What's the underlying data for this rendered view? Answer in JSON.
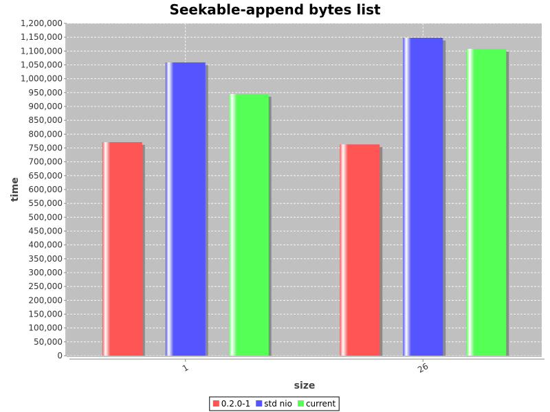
{
  "chart_data": {
    "type": "bar",
    "title": "Seekable-append bytes list",
    "xlabel": "size",
    "ylabel": "time",
    "categories": [
      "1",
      "26"
    ],
    "series": [
      {
        "name": "0.2.0-1",
        "values": [
          771000,
          763000
        ]
      },
      {
        "name": "std nio",
        "values": [
          1059000,
          1148000
        ]
      },
      {
        "name": "current",
        "values": [
          945000,
          1108000
        ]
      }
    ],
    "ylim": [
      0,
      1200000
    ],
    "ytick_step": 50000,
    "grid": true,
    "legend_position": "bottom",
    "colors": {
      "series": [
        "#ff5555",
        "#5555ff",
        "#55ff55"
      ],
      "plot_background": "#c0c0c0",
      "gridline": "#ffffff"
    }
  }
}
